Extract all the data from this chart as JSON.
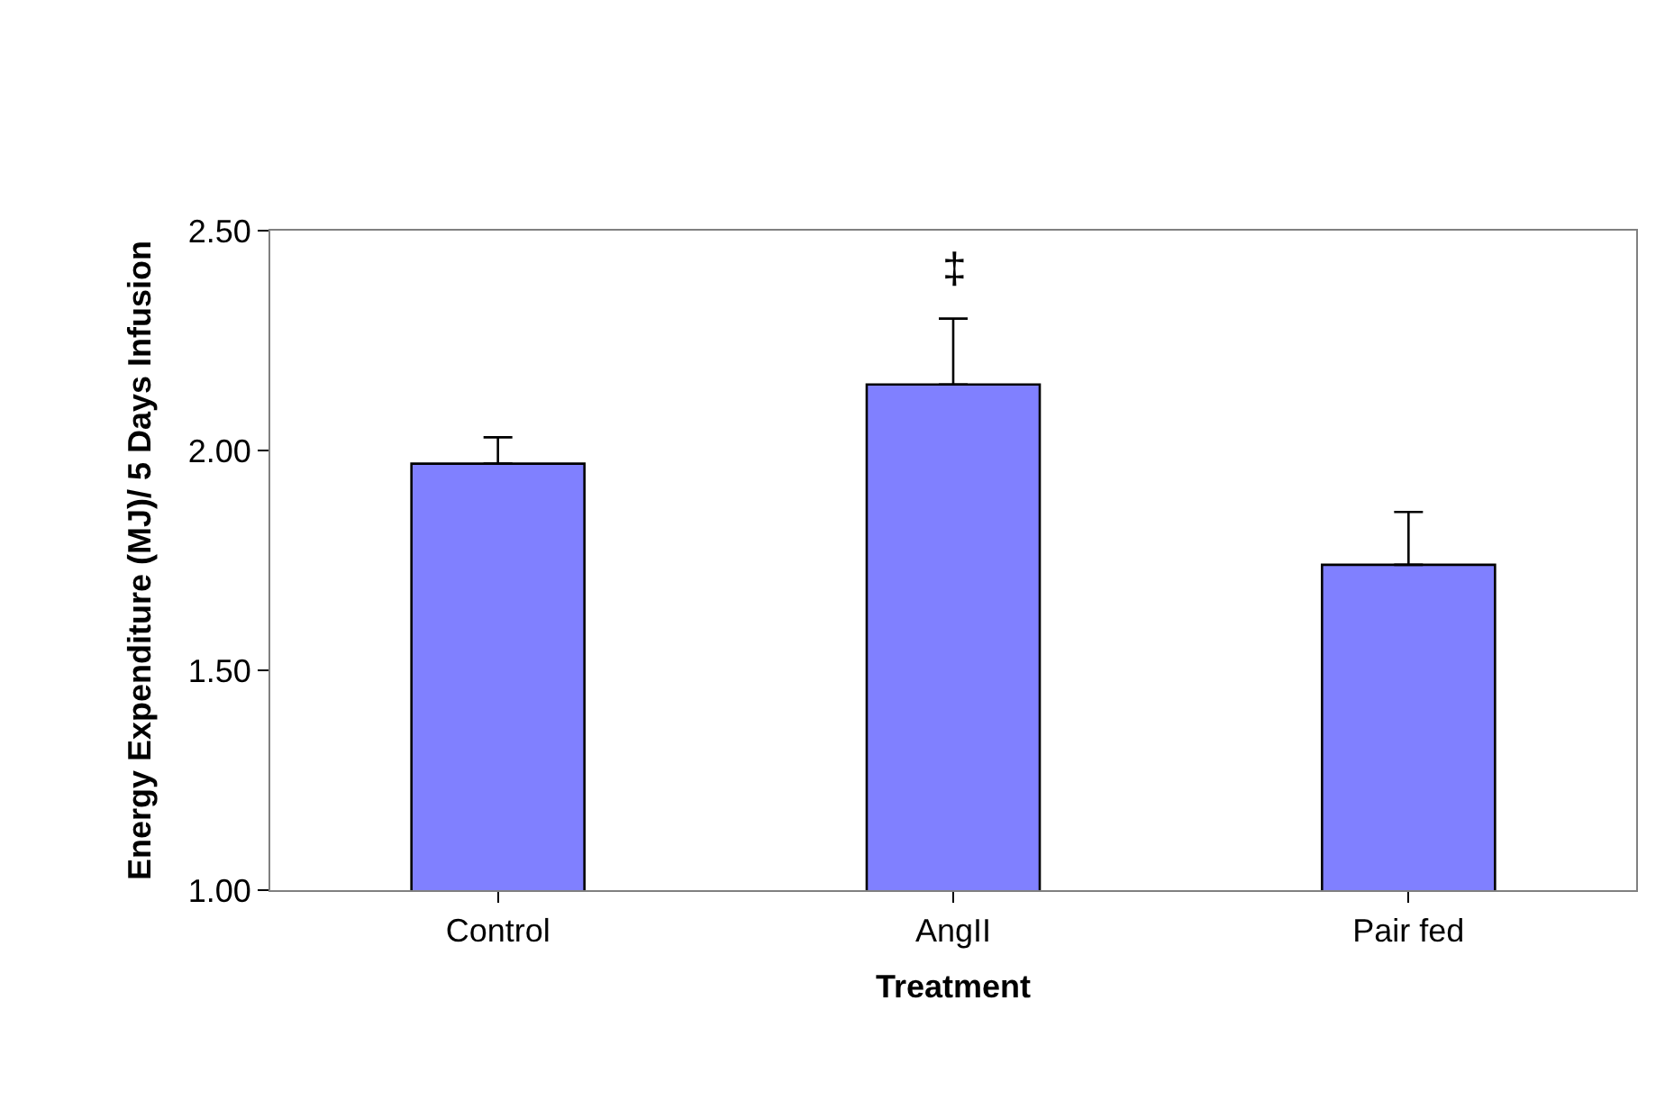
{
  "chart_data": {
    "type": "bar",
    "xlabel": "Treatment",
    "ylabel": "Energy Expenditure (MJ)/ 5 Days Infusion",
    "categories": [
      "Control",
      "AngII",
      "Pair fed"
    ],
    "values": [
      1.97,
      2.15,
      1.74
    ],
    "errors": [
      [
        1.97,
        2.03
      ],
      [
        2.15,
        2.3
      ],
      [
        1.74,
        1.86
      ]
    ],
    "color": "#8080ff",
    "ylim": [
      1.0,
      2.5
    ],
    "yticks": [
      {
        "value": 1.0,
        "label": "1.00"
      },
      {
        "value": 1.5,
        "label": "1.50"
      },
      {
        "value": 2.0,
        "label": "2.00"
      },
      {
        "value": 2.5,
        "label": "2.50"
      }
    ],
    "annotations": [
      "‡"
    ]
  }
}
